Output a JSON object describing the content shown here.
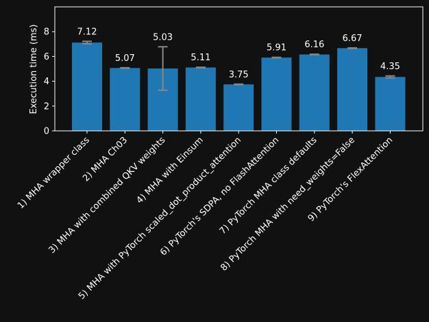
{
  "chart_data": {
    "type": "bar",
    "title": "",
    "xlabel": "",
    "ylabel": "Execution time (ms)",
    "ylim": [
      0,
      10
    ],
    "yticks": [
      0,
      2,
      4,
      6,
      8
    ],
    "grid": false,
    "categories": [
      "1) MHA wrapper class",
      "2) MHA Ch03",
      "3) MHA with combined QKV weights",
      "4) MHA with Einsum",
      "5) MHA with PyTorch scaled_dot_product_attention",
      "6) PyTorch's SDPA, no FlashAttention",
      "7) PyTorch MHA class defaults",
      "8) PyTorch MHA with need_weights=False",
      "9) PyTorch's FlexAttention"
    ],
    "values": [
      7.12,
      5.07,
      5.03,
      5.11,
      3.75,
      5.91,
      6.16,
      6.67,
      4.35
    ],
    "value_labels": [
      "7.12",
      "5.07",
      "5.03",
      "5.11",
      "3.75",
      "5.91",
      "6.16",
      "6.67",
      "4.35"
    ],
    "errors": [
      0.1,
      0.02,
      1.75,
      0.02,
      0.02,
      0.02,
      0.02,
      0.02,
      0.08
    ],
    "colors": {
      "bar": "#1f77b4",
      "error": "#888888",
      "axis": "#ffffff",
      "background": "#111111"
    }
  }
}
